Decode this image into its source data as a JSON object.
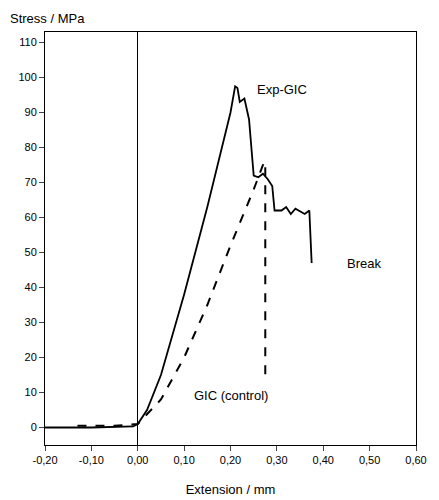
{
  "chart_data": {
    "type": "line",
    "y_label": "Stress / MPa",
    "x_label": "Extension / mm",
    "annotations": [
      "Exp-GIC",
      "GIC (control)",
      "Break"
    ],
    "series": [
      {
        "name": "Exp-GIC",
        "color": "#000000",
        "line_style": "solid",
        "x": [
          -0.2,
          -0.1,
          -0.01,
          0,
          0.02,
          0.05,
          0.1,
          0.15,
          0.2,
          0.21,
          0.215,
          0.22,
          0.23,
          0.24,
          0.25,
          0.26,
          0.27,
          0.28,
          0.29,
          0.295,
          0.31,
          0.32,
          0.33,
          0.34,
          0.36,
          0.37,
          0.375
        ],
        "values": [
          0,
          0,
          0.3,
          1,
          5,
          15,
          38,
          63,
          90,
          97.5,
          97,
          93,
          94,
          88,
          72,
          71.5,
          72.5,
          71,
          69,
          62,
          62,
          63,
          61,
          62.5,
          61,
          62,
          47
        ]
      },
      {
        "name": "GIC (control)",
        "color": "#000000",
        "line_style": "dash",
        "x": [
          -0.13,
          -0.05,
          0,
          0.05,
          0.1,
          0.15,
          0.2,
          0.25,
          0.27,
          0.275,
          0.275
        ],
        "values": [
          0.5,
          0.5,
          1,
          8,
          20,
          35,
          52,
          68,
          75,
          76,
          15
        ]
      }
    ],
    "xlim": [
      -0.2,
      0.6
    ],
    "xticks": [
      {
        "value": -0.2,
        "label": "-0,20"
      },
      {
        "value": -0.1,
        "label": "-0,10"
      },
      {
        "value": 0,
        "label": "0,00"
      },
      {
        "value": 0.1,
        "label": "0,10"
      },
      {
        "value": 0.2,
        "label": "0,20"
      },
      {
        "value": 0.3,
        "label": "0,30"
      },
      {
        "value": 0.4,
        "label": "0,40"
      },
      {
        "value": 0.5,
        "label": "0,50"
      },
      {
        "value": 0.6,
        "label": "0,60"
      }
    ],
    "ylim": [
      -5,
      113
    ],
    "yticks": [
      0,
      10,
      20,
      30,
      40,
      50,
      60,
      70,
      80,
      90,
      100,
      110
    ],
    "grid": false
  }
}
